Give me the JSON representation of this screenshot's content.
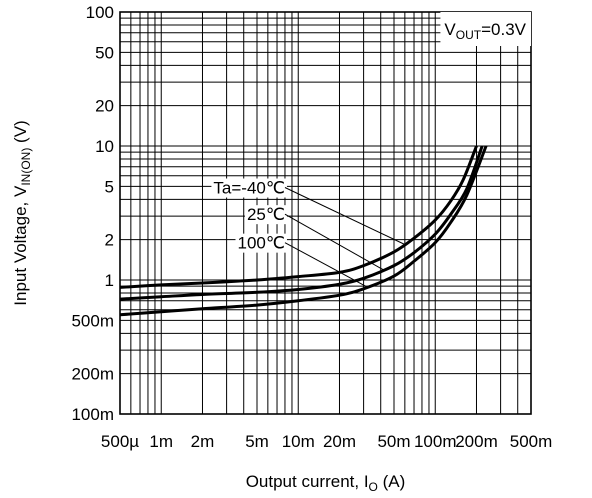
{
  "chart_data": {
    "type": "line",
    "title": "",
    "xlabel": {
      "main": "Output current, I",
      "sub": "O",
      "unit": " (A)"
    },
    "ylabel": {
      "main": "Input Voltage, V",
      "sub": "IN(ON)",
      "unit": " (V)"
    },
    "x_scale": "log",
    "y_scale": "log",
    "xlim": [
      0.0005,
      0.5
    ],
    "ylim": [
      0.1,
      100
    ],
    "grid": true,
    "x_ticks": [
      {
        "value": 0.0005,
        "label": "500µ"
      },
      {
        "value": 0.001,
        "label": "1m"
      },
      {
        "value": 0.002,
        "label": "2m"
      },
      {
        "value": 0.005,
        "label": "5m"
      },
      {
        "value": 0.01,
        "label": "10m"
      },
      {
        "value": 0.02,
        "label": "20m"
      },
      {
        "value": 0.05,
        "label": "50m"
      },
      {
        "value": 0.1,
        "label": "100m"
      },
      {
        "value": 0.2,
        "label": "200m"
      },
      {
        "value": 0.5,
        "label": "500m"
      }
    ],
    "y_ticks": [
      {
        "value": 0.1,
        "label": "100m"
      },
      {
        "value": 0.2,
        "label": "200m"
      },
      {
        "value": 0.5,
        "label": "500m"
      },
      {
        "value": 1,
        "label": "1"
      },
      {
        "value": 2,
        "label": "2"
      },
      {
        "value": 5,
        "label": "5"
      },
      {
        "value": 10,
        "label": "10"
      },
      {
        "value": 20,
        "label": "20"
      },
      {
        "value": 50,
        "label": "50"
      },
      {
        "value": 100,
        "label": "100"
      }
    ],
    "annotation": {
      "main": "V",
      "sub": "OUT",
      "rest": "=0.3V",
      "position": "top-right"
    },
    "series": [
      {
        "name": "Ta=-40℃",
        "values": [
          [
            0.0005,
            0.88
          ],
          [
            0.001,
            0.92
          ],
          [
            0.002,
            0.95
          ],
          [
            0.005,
            1.0
          ],
          [
            0.01,
            1.06
          ],
          [
            0.02,
            1.14
          ],
          [
            0.03,
            1.28
          ],
          [
            0.05,
            1.62
          ],
          [
            0.07,
            2.05
          ],
          [
            0.1,
            2.8
          ],
          [
            0.13,
            3.9
          ],
          [
            0.16,
            5.6
          ],
          [
            0.2,
            10.0
          ]
        ]
      },
      {
        "name": "25℃",
        "values": [
          [
            0.0005,
            0.72
          ],
          [
            0.001,
            0.75
          ],
          [
            0.002,
            0.78
          ],
          [
            0.005,
            0.81
          ],
          [
            0.01,
            0.85
          ],
          [
            0.02,
            0.93
          ],
          [
            0.03,
            1.03
          ],
          [
            0.05,
            1.28
          ],
          [
            0.07,
            1.6
          ],
          [
            0.1,
            2.2
          ],
          [
            0.13,
            3.1
          ],
          [
            0.17,
            4.8
          ],
          [
            0.22,
            10.0
          ]
        ]
      },
      {
        "name": "100℃",
        "values": [
          [
            0.0005,
            0.55
          ],
          [
            0.001,
            0.58
          ],
          [
            0.002,
            0.61
          ],
          [
            0.005,
            0.65
          ],
          [
            0.01,
            0.7
          ],
          [
            0.02,
            0.77
          ],
          [
            0.03,
            0.86
          ],
          [
            0.05,
            1.07
          ],
          [
            0.07,
            1.38
          ],
          [
            0.1,
            1.9
          ],
          [
            0.13,
            2.7
          ],
          [
            0.17,
            4.3
          ],
          [
            0.235,
            10.0
          ]
        ]
      }
    ],
    "series_leaders": [
      {
        "series": "Ta=-40℃",
        "at_x": 0.06,
        "label_x": 0.008,
        "label_y": 4.9
      },
      {
        "series": "25℃",
        "at_x": 0.042,
        "label_x": 0.008,
        "label_y": 3.1
      },
      {
        "series": "100℃",
        "at_x": 0.032,
        "label_x": 0.008,
        "label_y": 1.9
      }
    ]
  }
}
